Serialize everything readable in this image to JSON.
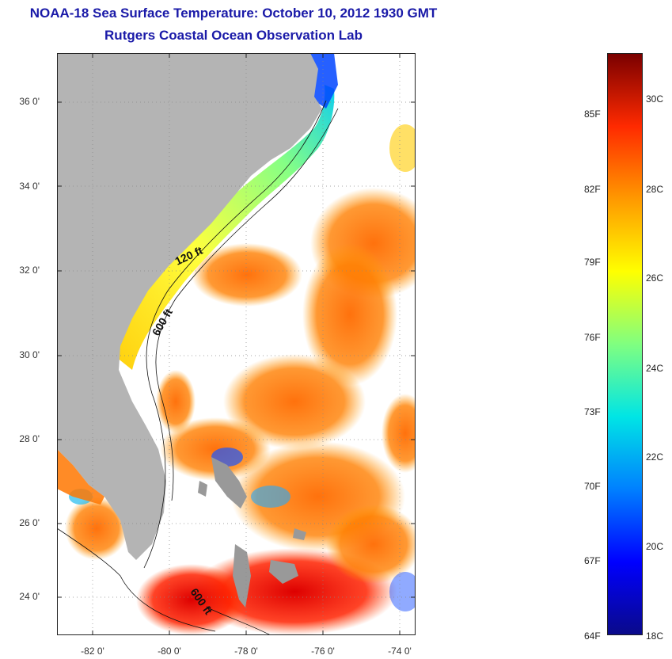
{
  "title_line1": "NOAA-18 Sea Surface Temperature:  October 10, 2012 1930 GMT",
  "title_line2": "Rutgers Coastal Ocean Observation Lab",
  "y_ticks": [
    "36 0'",
    "34 0'",
    "32 0'",
    "30 0'",
    "28 0'",
    "26 0'",
    "24 0'"
  ],
  "x_ticks": [
    "-82 0'",
    "-80 0'",
    "-78 0'",
    "-76 0'",
    "-74 0'"
  ],
  "isobath_labels": [
    "120 ft",
    "600 ft",
    "600 ft"
  ],
  "colorbar": {
    "fahrenheit": [
      "85F",
      "82F",
      "79F",
      "76F",
      "73F",
      "70F",
      "67F",
      "64F"
    ],
    "celsius": [
      "30C",
      "28C",
      "26C",
      "24C",
      "22C",
      "20C",
      "18C"
    ],
    "colors": [
      "#0a0a8a",
      "#0000ff",
      "#0080ff",
      "#00e5e5",
      "#80ff80",
      "#ffff00",
      "#ff9900",
      "#ff2a00",
      "#7a0000"
    ]
  },
  "colors": {
    "land": "#b4b4b4",
    "ocean_background": "#ffffff",
    "title": "#1a1aa8"
  }
}
